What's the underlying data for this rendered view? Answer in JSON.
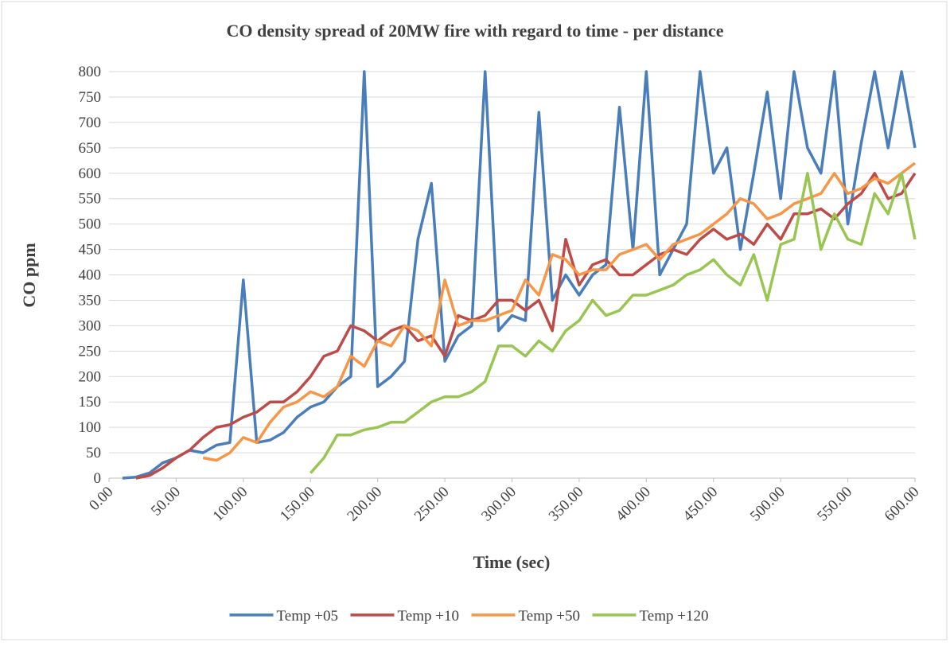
{
  "chart_data": {
    "type": "line",
    "title": "CO density spread of 20MW fire with regard to time - per distance",
    "x_label": "Time (sec)",
    "y_label": "CO ppm",
    "x": [
      10,
      20,
      30,
      40,
      50,
      60,
      70,
      80,
      90,
      100,
      110,
      120,
      130,
      140,
      150,
      160,
      170,
      180,
      190,
      200,
      210,
      220,
      230,
      240,
      250,
      260,
      270,
      280,
      290,
      300,
      310,
      320,
      330,
      340,
      350,
      360,
      370,
      380,
      390,
      400,
      410,
      420,
      430,
      440,
      450,
      460,
      470,
      480,
      490,
      500,
      510,
      520,
      530,
      540,
      550,
      560,
      570,
      580,
      590,
      600
    ],
    "series": [
      {
        "name": "Temp +05",
        "color": "#4a7ebb",
        "values": [
          0,
          2,
          10,
          30,
          40,
          55,
          50,
          65,
          70,
          390,
          70,
          75,
          90,
          120,
          140,
          150,
          180,
          200,
          800,
          180,
          200,
          230,
          470,
          580,
          230,
          280,
          300,
          800,
          290,
          320,
          310,
          720,
          350,
          400,
          360,
          400,
          420,
          730,
          450,
          800,
          400,
          450,
          500,
          800,
          600,
          650,
          450,
          600,
          760,
          550,
          800,
          650,
          600,
          800,
          500,
          660,
          800,
          650,
          800,
          650
        ]
      },
      {
        "name": "Temp +10",
        "color": "#be4b48",
        "values": [
          null,
          0,
          5,
          20,
          40,
          55,
          80,
          100,
          105,
          120,
          130,
          150,
          150,
          170,
          200,
          240,
          250,
          300,
          290,
          270,
          290,
          300,
          270,
          280,
          240,
          320,
          310,
          320,
          350,
          350,
          330,
          350,
          290,
          470,
          380,
          420,
          430,
          400,
          400,
          420,
          440,
          450,
          440,
          470,
          490,
          470,
          480,
          460,
          500,
          470,
          520,
          520,
          530,
          510,
          540,
          560,
          600,
          550,
          560,
          600
        ]
      },
      {
        "name": "Temp +50",
        "color": "#f79646",
        "values": [
          null,
          null,
          null,
          null,
          null,
          null,
          40,
          35,
          50,
          80,
          70,
          110,
          140,
          150,
          170,
          160,
          180,
          240,
          220,
          270,
          260,
          300,
          290,
          260,
          390,
          300,
          310,
          310,
          320,
          330,
          390,
          360,
          440,
          430,
          400,
          410,
          410,
          440,
          450,
          460,
          430,
          460,
          470,
          480,
          500,
          520,
          550,
          540,
          510,
          520,
          540,
          550,
          560,
          600,
          560,
          570,
          590,
          580,
          600,
          620
        ]
      },
      {
        "name": "Temp +120",
        "color": "#98c651",
        "values": [
          null,
          null,
          null,
          null,
          null,
          null,
          null,
          null,
          null,
          null,
          null,
          null,
          null,
          null,
          10,
          40,
          85,
          85,
          95,
          100,
          110,
          110,
          130,
          150,
          160,
          160,
          170,
          190,
          260,
          260,
          240,
          270,
          250,
          290,
          310,
          350,
          320,
          330,
          360,
          360,
          370,
          380,
          400,
          410,
          430,
          400,
          380,
          440,
          350,
          460,
          470,
          600,
          450,
          520,
          470,
          460,
          560,
          520,
          600,
          470
        ]
      }
    ],
    "xlim": [
      0,
      600
    ],
    "xticks": [
      {
        "value": 0,
        "label": "0.00"
      },
      {
        "value": 50,
        "label": "50.00"
      },
      {
        "value": 100,
        "label": "100.00"
      },
      {
        "value": 150,
        "label": "150.00"
      },
      {
        "value": 200,
        "label": "200.00"
      },
      {
        "value": 250,
        "label": "250.00"
      },
      {
        "value": 300,
        "label": "300.00"
      },
      {
        "value": 350,
        "label": "350.00"
      },
      {
        "value": 400,
        "label": "400.00"
      },
      {
        "value": 450,
        "label": "450.00"
      },
      {
        "value": 500,
        "label": "500.00"
      },
      {
        "value": 550,
        "label": "550.00"
      },
      {
        "value": 600,
        "label": "600.00"
      }
    ],
    "ylim": [
      0,
      800
    ],
    "yticks": [
      0,
      50,
      100,
      150,
      200,
      250,
      300,
      350,
      400,
      450,
      500,
      550,
      600,
      650,
      700,
      750,
      800
    ],
    "grid": true,
    "legend": "bottom"
  }
}
